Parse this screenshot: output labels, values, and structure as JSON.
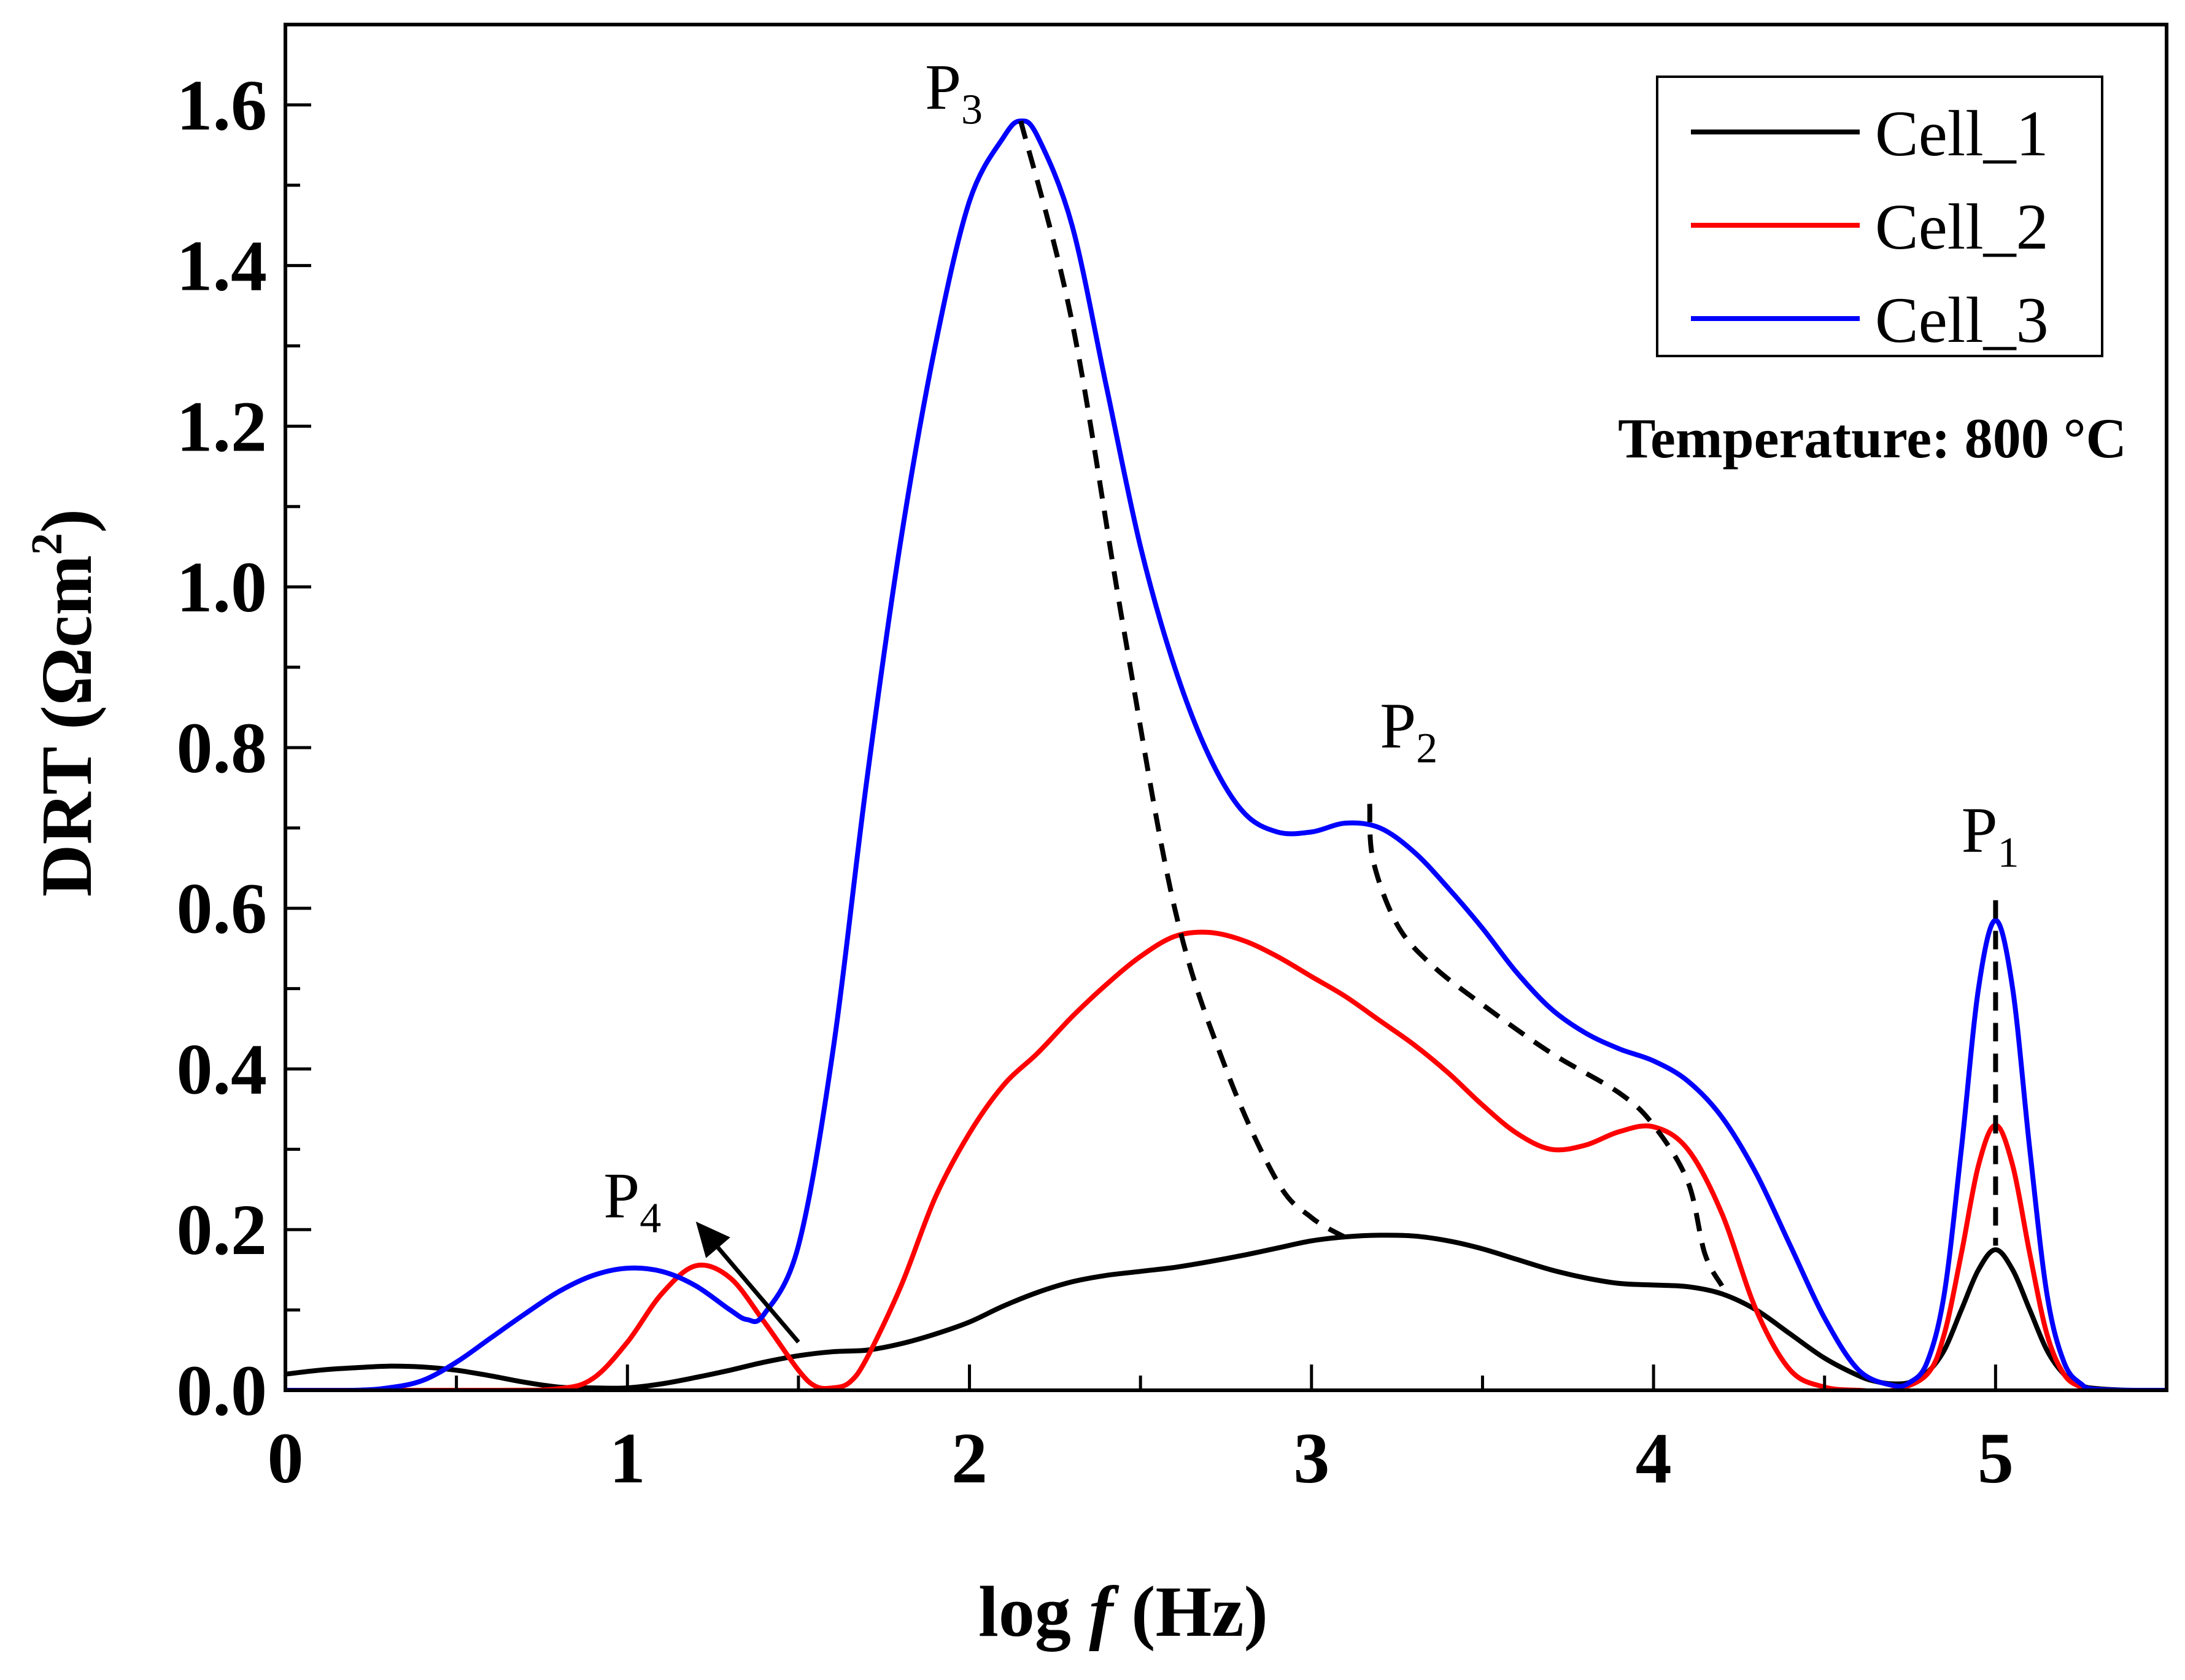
{
  "chart_data": {
    "type": "line",
    "xlabel": {
      "prefix": "log ",
      "var": "f",
      "suffix": " (Hz)"
    },
    "ylabel": {
      "main": "DRT (Ωcm",
      "sup": "2",
      "close": ")"
    },
    "xlim": [
      0,
      5.5
    ],
    "ylim": [
      0,
      1.7
    ],
    "x_ticks": [
      0,
      1,
      2,
      3,
      4,
      5
    ],
    "x_tick_labels": [
      "0",
      "1",
      "2",
      "3",
      "4",
      "5"
    ],
    "y_ticks": [
      0,
      0.2,
      0.4,
      0.6,
      0.8,
      1.0,
      1.2,
      1.4,
      1.6
    ],
    "y_tick_labels": [
      "0.0",
      "0.2",
      "0.4",
      "0.6",
      "0.8",
      "1.0",
      "1.2",
      "1.4",
      "1.6"
    ],
    "grid": false,
    "legend_position": "top-right",
    "annotation_text": "Temperature: 800 °C",
    "series": [
      {
        "name": "Cell_1",
        "color": "#000000",
        "points": [
          [
            0,
            0.02
          ],
          [
            0.1,
            0.025
          ],
          [
            0.2,
            0.028
          ],
          [
            0.3,
            0.03
          ],
          [
            0.4,
            0.029
          ],
          [
            0.5,
            0.025
          ],
          [
            0.6,
            0.018
          ],
          [
            0.7,
            0.01
          ],
          [
            0.8,
            0.004
          ],
          [
            0.9,
            0.003
          ],
          [
            1.0,
            0.003
          ],
          [
            1.1,
            0.008
          ],
          [
            1.2,
            0.016
          ],
          [
            1.3,
            0.025
          ],
          [
            1.4,
            0.035
          ],
          [
            1.5,
            0.043
          ],
          [
            1.6,
            0.048
          ],
          [
            1.7,
            0.05
          ],
          [
            1.8,
            0.058
          ],
          [
            1.9,
            0.07
          ],
          [
            2.0,
            0.085
          ],
          [
            2.1,
            0.105
          ],
          [
            2.2,
            0.122
          ],
          [
            2.3,
            0.135
          ],
          [
            2.4,
            0.143
          ],
          [
            2.5,
            0.148
          ],
          [
            2.6,
            0.153
          ],
          [
            2.7,
            0.16
          ],
          [
            2.8,
            0.168
          ],
          [
            2.9,
            0.177
          ],
          [
            3.0,
            0.186
          ],
          [
            3.1,
            0.191
          ],
          [
            3.2,
            0.193
          ],
          [
            3.3,
            0.192
          ],
          [
            3.4,
            0.186
          ],
          [
            3.5,
            0.176
          ],
          [
            3.6,
            0.163
          ],
          [
            3.7,
            0.15
          ],
          [
            3.8,
            0.14
          ],
          [
            3.9,
            0.133
          ],
          [
            4.0,
            0.131
          ],
          [
            4.1,
            0.129
          ],
          [
            4.2,
            0.12
          ],
          [
            4.3,
            0.1
          ],
          [
            4.4,
            0.07
          ],
          [
            4.5,
            0.04
          ],
          [
            4.6,
            0.018
          ],
          [
            4.65,
            0.011
          ],
          [
            4.7,
            0.008
          ],
          [
            4.75,
            0.01
          ],
          [
            4.8,
            0.022
          ],
          [
            4.85,
            0.05
          ],
          [
            4.9,
            0.1
          ],
          [
            4.95,
            0.15
          ],
          [
            5.0,
            0.175
          ],
          [
            5.05,
            0.15
          ],
          [
            5.1,
            0.1
          ],
          [
            5.15,
            0.05
          ],
          [
            5.2,
            0.02
          ],
          [
            5.25,
            0.006
          ],
          [
            5.3,
            0.002
          ],
          [
            5.4,
            0.0
          ],
          [
            5.5,
            0.0
          ]
        ]
      },
      {
        "name": "Cell_2",
        "color": "#ff0000",
        "points": [
          [
            0,
            0.0
          ],
          [
            0.6,
            0.0
          ],
          [
            0.8,
            0.002
          ],
          [
            0.9,
            0.015
          ],
          [
            1.0,
            0.06
          ],
          [
            1.1,
            0.12
          ],
          [
            1.2,
            0.155
          ],
          [
            1.3,
            0.14
          ],
          [
            1.4,
            0.085
          ],
          [
            1.5,
            0.025
          ],
          [
            1.55,
            0.005
          ],
          [
            1.6,
            0.003
          ],
          [
            1.65,
            0.01
          ],
          [
            1.7,
            0.04
          ],
          [
            1.8,
            0.13
          ],
          [
            1.9,
            0.24
          ],
          [
            2.0,
            0.32
          ],
          [
            2.1,
            0.38
          ],
          [
            2.2,
            0.42
          ],
          [
            2.3,
            0.465
          ],
          [
            2.4,
            0.505
          ],
          [
            2.5,
            0.54
          ],
          [
            2.6,
            0.565
          ],
          [
            2.7,
            0.57
          ],
          [
            2.8,
            0.56
          ],
          [
            2.9,
            0.54
          ],
          [
            3.0,
            0.515
          ],
          [
            3.1,
            0.49
          ],
          [
            3.2,
            0.46
          ],
          [
            3.3,
            0.43
          ],
          [
            3.4,
            0.395
          ],
          [
            3.5,
            0.355
          ],
          [
            3.6,
            0.32
          ],
          [
            3.7,
            0.3
          ],
          [
            3.8,
            0.305
          ],
          [
            3.9,
            0.322
          ],
          [
            4.0,
            0.328
          ],
          [
            4.1,
            0.3
          ],
          [
            4.2,
            0.22
          ],
          [
            4.3,
            0.1
          ],
          [
            4.4,
            0.025
          ],
          [
            4.5,
            0.004
          ],
          [
            4.6,
            0.0
          ],
          [
            4.7,
            0.0
          ],
          [
            4.8,
            0.02
          ],
          [
            4.85,
            0.07
          ],
          [
            4.9,
            0.17
          ],
          [
            4.95,
            0.28
          ],
          [
            5.0,
            0.33
          ],
          [
            5.05,
            0.28
          ],
          [
            5.1,
            0.17
          ],
          [
            5.15,
            0.07
          ],
          [
            5.2,
            0.02
          ],
          [
            5.25,
            0.004
          ],
          [
            5.3,
            0.0
          ],
          [
            5.5,
            0.0
          ]
        ]
      },
      {
        "name": "Cell_3",
        "color": "#0000ff",
        "points": [
          [
            0,
            0.0
          ],
          [
            0.2,
            0.0
          ],
          [
            0.3,
            0.003
          ],
          [
            0.4,
            0.012
          ],
          [
            0.5,
            0.035
          ],
          [
            0.6,
            0.065
          ],
          [
            0.7,
            0.095
          ],
          [
            0.8,
            0.123
          ],
          [
            0.9,
            0.143
          ],
          [
            1.0,
            0.152
          ],
          [
            1.1,
            0.148
          ],
          [
            1.2,
            0.13
          ],
          [
            1.3,
            0.1
          ],
          [
            1.35,
            0.088
          ],
          [
            1.4,
            0.095
          ],
          [
            1.5,
            0.18
          ],
          [
            1.6,
            0.42
          ],
          [
            1.7,
            0.76
          ],
          [
            1.8,
            1.06
          ],
          [
            1.9,
            1.3
          ],
          [
            2.0,
            1.48
          ],
          [
            2.1,
            1.56
          ],
          [
            2.15,
            1.58
          ],
          [
            2.2,
            1.56
          ],
          [
            2.3,
            1.45
          ],
          [
            2.4,
            1.25
          ],
          [
            2.5,
            1.05
          ],
          [
            2.6,
            0.9
          ],
          [
            2.7,
            0.79
          ],
          [
            2.8,
            0.72
          ],
          [
            2.9,
            0.695
          ],
          [
            3.0,
            0.695
          ],
          [
            3.1,
            0.706
          ],
          [
            3.2,
            0.7
          ],
          [
            3.3,
            0.67
          ],
          [
            3.4,
            0.625
          ],
          [
            3.5,
            0.575
          ],
          [
            3.6,
            0.52
          ],
          [
            3.7,
            0.475
          ],
          [
            3.8,
            0.445
          ],
          [
            3.9,
            0.425
          ],
          [
            4.0,
            0.41
          ],
          [
            4.1,
            0.385
          ],
          [
            4.2,
            0.34
          ],
          [
            4.3,
            0.27
          ],
          [
            4.4,
            0.18
          ],
          [
            4.5,
            0.09
          ],
          [
            4.6,
            0.025
          ],
          [
            4.7,
            0.006
          ],
          [
            4.75,
            0.01
          ],
          [
            4.8,
            0.035
          ],
          [
            4.85,
            0.12
          ],
          [
            4.9,
            0.3
          ],
          [
            4.95,
            0.5
          ],
          [
            5.0,
            0.585
          ],
          [
            5.05,
            0.5
          ],
          [
            5.1,
            0.3
          ],
          [
            5.15,
            0.12
          ],
          [
            5.2,
            0.035
          ],
          [
            5.25,
            0.008
          ],
          [
            5.3,
            0.001
          ],
          [
            5.5,
            0.0
          ]
        ]
      }
    ],
    "guides": [
      {
        "style": "dashed",
        "points": [
          [
            2.15,
            1.58
          ],
          [
            2.3,
            1.33
          ],
          [
            2.45,
            0.95
          ],
          [
            2.6,
            0.6
          ],
          [
            2.75,
            0.4
          ],
          [
            2.9,
            0.26
          ],
          [
            3.0,
            0.215
          ],
          [
            3.1,
            0.19
          ]
        ]
      },
      {
        "style": "dashed",
        "points": [
          [
            3.17,
            0.73
          ],
          [
            3.18,
            0.66
          ],
          [
            3.25,
            0.58
          ],
          [
            3.35,
            0.53
          ],
          [
            3.5,
            0.48
          ],
          [
            3.7,
            0.42
          ],
          [
            3.9,
            0.37
          ],
          [
            4.0,
            0.33
          ],
          [
            4.1,
            0.26
          ],
          [
            4.15,
            0.17
          ],
          [
            4.2,
            0.13
          ]
        ]
      },
      {
        "style": "dashed",
        "points": [
          [
            5.0,
            0.61
          ],
          [
            5.0,
            0.18
          ]
        ]
      }
    ],
    "arrow": {
      "from": [
        1.5,
        0.06
      ],
      "to": [
        1.2,
        0.21
      ]
    },
    "peak_labels": [
      {
        "base": "P",
        "sub": "1",
        "x": 4.9,
        "y": 0.67
      },
      {
        "base": "P",
        "sub": "2",
        "x": 3.2,
        "y": 0.8
      },
      {
        "base": "P",
        "sub": "3",
        "x": 1.87,
        "y": 1.595
      },
      {
        "base": "P",
        "sub": "4",
        "x": 0.93,
        "y": 0.215
      }
    ]
  }
}
